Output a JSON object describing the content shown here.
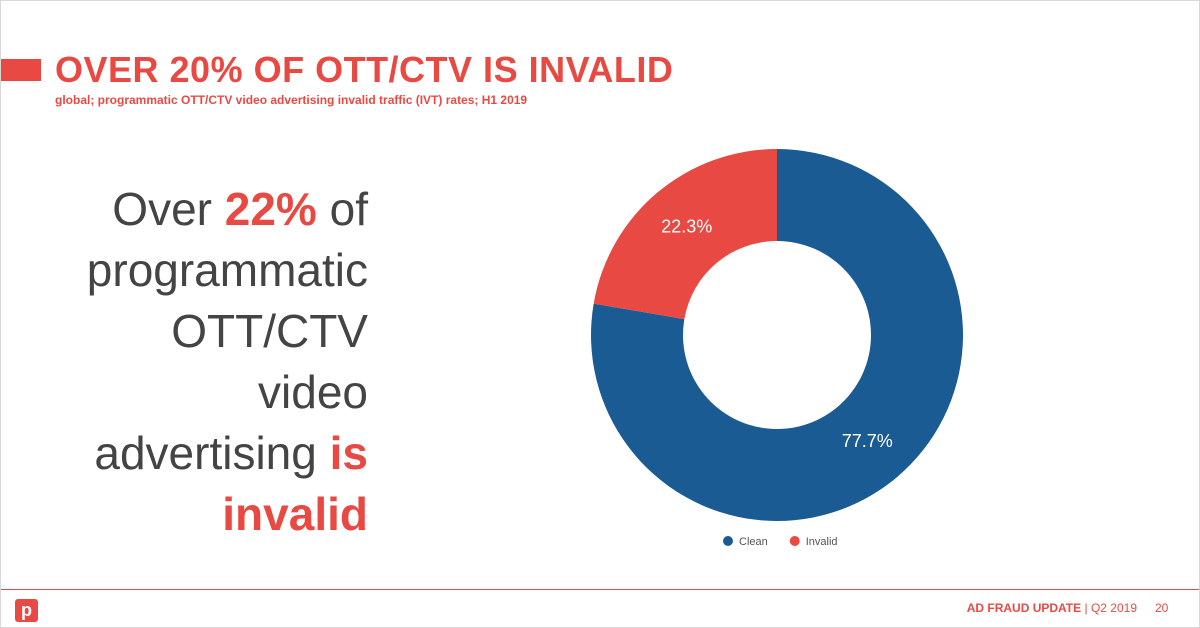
{
  "slide": {
    "title": "OVER 20% OF OTT/CTV IS INVALID",
    "subtitle": "global; programmatic OTT/CTV video advertising invalid traffic (IVT) rates; H1 2019",
    "callout": {
      "lead": "Over",
      "highlight": "22%",
      "middle": "of programmatic OTT/CTV video advertising",
      "emphasis": "is invalid"
    },
    "footer": {
      "brand": "AD FRAUD UPDATE",
      "period": "| Q2 2019",
      "page": "20",
      "logo": "p"
    }
  },
  "chart_data": {
    "type": "pie",
    "donut": true,
    "categories": [
      "Clean",
      "Invalid"
    ],
    "values": [
      77.7,
      22.3
    ],
    "value_labels": [
      "77.7%",
      "22.3%"
    ],
    "colors": [
      "#1b5b93",
      "#e84a43"
    ]
  }
}
